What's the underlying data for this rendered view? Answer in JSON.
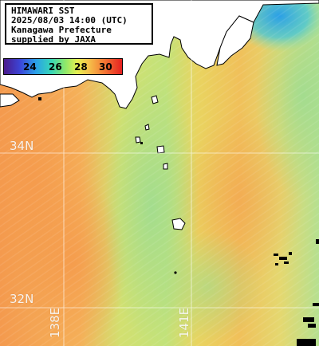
{
  "title": {
    "line1": "HIMAWARI SST",
    "line2": "2025/08/03 14:00 (UTC)",
    "line3": "Kanagawa Prefecture",
    "line4": "supplied by JAXA"
  },
  "colorbar": {
    "ticks": [
      "24",
      "26",
      "28",
      "30"
    ]
  },
  "grid": {
    "lat_labels": [
      "34N",
      "32N"
    ],
    "lon_labels": [
      "138E",
      "141E"
    ]
  },
  "colors": {
    "land": "#ffffff",
    "coastline": "#000000",
    "gridline": "#ffffff",
    "warm": "#f5a650",
    "mid": "#c8e070",
    "cool": "#7fd8b0",
    "cold": "#2aa0e8"
  }
}
